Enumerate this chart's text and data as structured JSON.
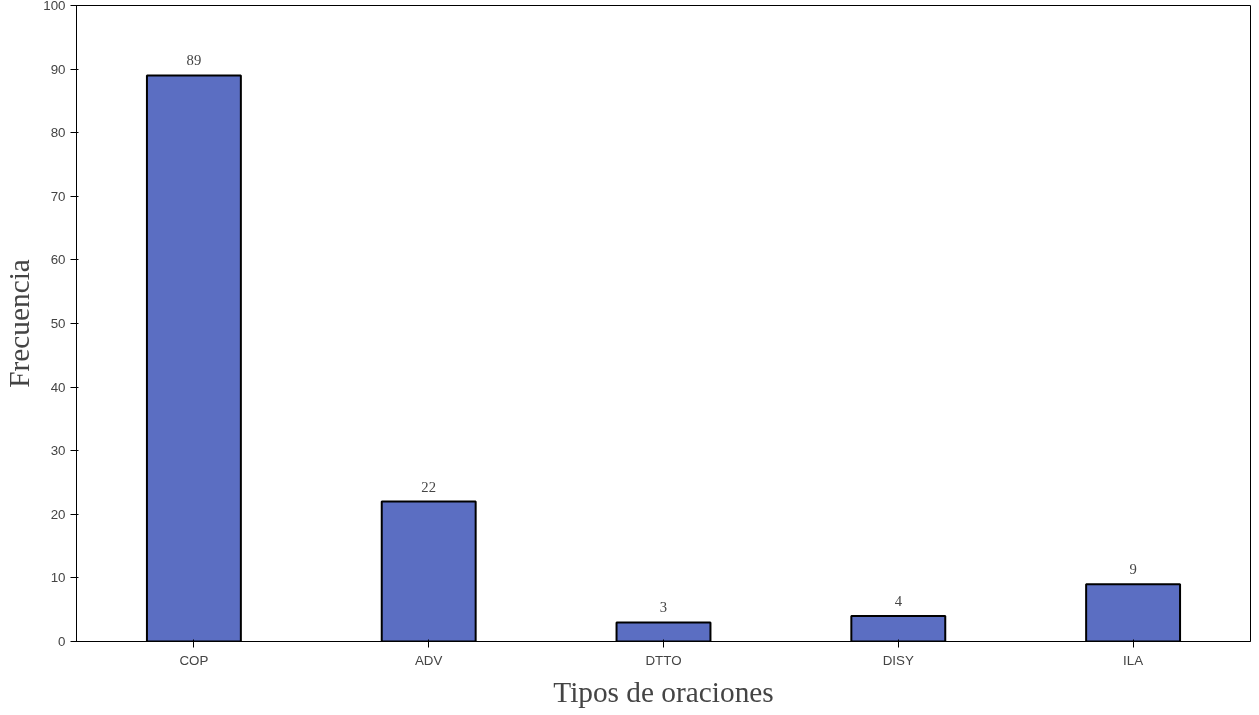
{
  "chart_data": {
    "type": "bar",
    "xlabel": "Tipos de oraciones",
    "ylabel": "Frecuencia",
    "categories": [
      "COP",
      "ADV",
      "DTTO",
      "DISY",
      "ILA"
    ],
    "values": [
      89,
      22,
      3,
      4,
      9
    ],
    "color": "#5b6ec2",
    "ylim": [
      0,
      100
    ],
    "yticks": [
      0,
      10,
      20,
      30,
      40,
      50,
      60,
      70,
      80,
      90,
      100
    ],
    "data_labels": true,
    "grid": false
  }
}
